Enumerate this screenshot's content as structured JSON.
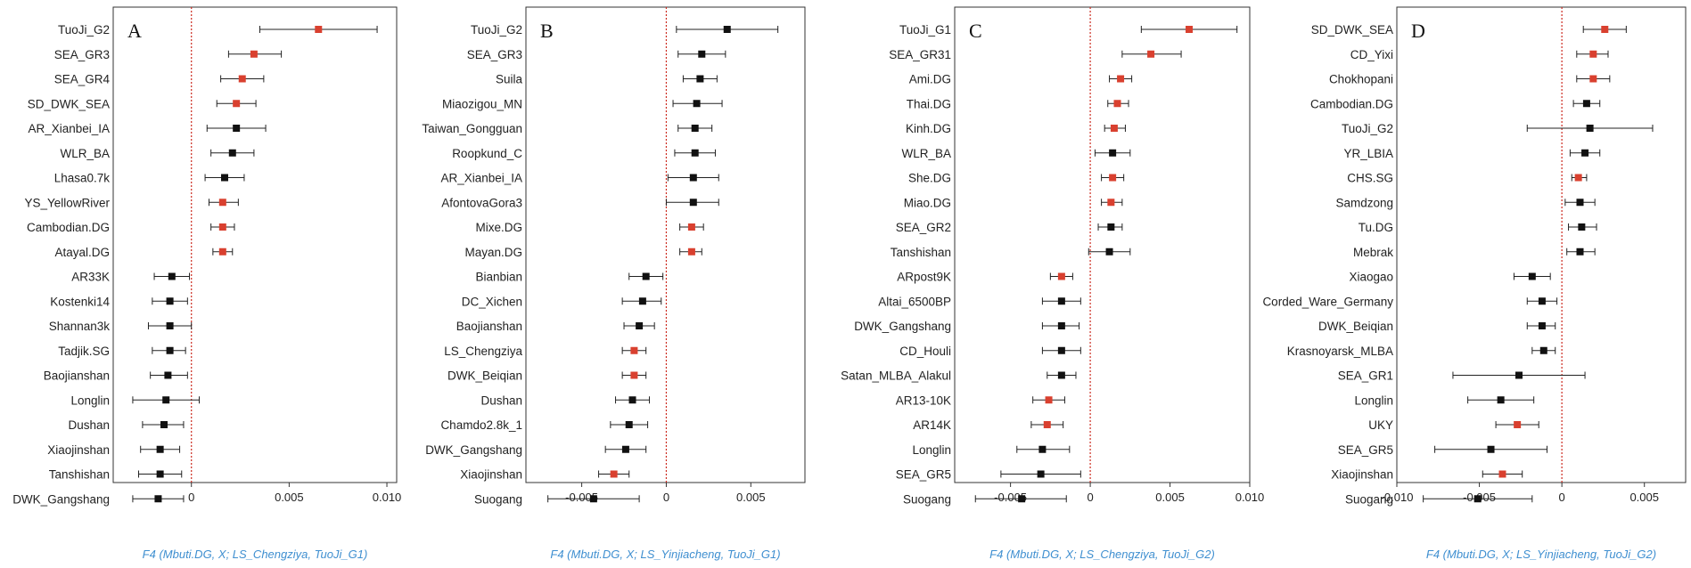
{
  "figure": {
    "zero_line_color": "#cc2a1f",
    "highlight_color": "#d9402f",
    "default_color": "#111111",
    "xlabel_color": "#3f8fd0"
  },
  "chart_data": [
    {
      "type": "scatter",
      "panel": "A",
      "xlabel": "F4 (Mbuti.DG, X; LS_Chengziya, TuoJi_G1)",
      "xlim": [
        -0.004,
        0.0105
      ],
      "xticks": [
        0,
        0.005,
        0.01
      ],
      "xtick_labels": [
        "0",
        "0.005",
        "0.010"
      ],
      "points": [
        {
          "label": "TuoJi_G2",
          "value": 0.0065,
          "lo": 0.0035,
          "hi": 0.0095,
          "highlight": true
        },
        {
          "label": "SEA_GR3",
          "value": 0.0032,
          "lo": 0.0019,
          "hi": 0.0046,
          "highlight": true
        },
        {
          "label": "SEA_GR4",
          "value": 0.0026,
          "lo": 0.0015,
          "hi": 0.0037,
          "highlight": true
        },
        {
          "label": "SD_DWK_SEA",
          "value": 0.0023,
          "lo": 0.0013,
          "hi": 0.0033,
          "highlight": true
        },
        {
          "label": "AR_Xianbei_IA",
          "value": 0.0023,
          "lo": 0.0008,
          "hi": 0.0038,
          "highlight": false
        },
        {
          "label": "WLR_BA",
          "value": 0.0021,
          "lo": 0.001,
          "hi": 0.0032,
          "highlight": false
        },
        {
          "label": "Lhasa0.7k",
          "value": 0.0017,
          "lo": 0.0007,
          "hi": 0.0027,
          "highlight": false
        },
        {
          "label": "YS_YellowRiver",
          "value": 0.0016,
          "lo": 0.0009,
          "hi": 0.0024,
          "highlight": true
        },
        {
          "label": "Cambodian.DG",
          "value": 0.0016,
          "lo": 0.001,
          "hi": 0.0022,
          "highlight": true
        },
        {
          "label": "Atayal.DG",
          "value": 0.0016,
          "lo": 0.0011,
          "hi": 0.0021,
          "highlight": true
        },
        {
          "label": "AR33K",
          "value": -0.001,
          "lo": -0.0019,
          "hi": -0.0001,
          "highlight": false
        },
        {
          "label": "Kostenki14",
          "value": -0.0011,
          "lo": -0.002,
          "hi": -0.0002,
          "highlight": false
        },
        {
          "label": "Shannan3k",
          "value": -0.0011,
          "lo": -0.0022,
          "hi": 0.0,
          "highlight": false
        },
        {
          "label": "Tadjik.SG",
          "value": -0.0011,
          "lo": -0.002,
          "hi": -0.0003,
          "highlight": false
        },
        {
          "label": "Baojianshan",
          "value": -0.0012,
          "lo": -0.0021,
          "hi": -0.0002,
          "highlight": false
        },
        {
          "label": "Longlin",
          "value": -0.0013,
          "lo": -0.003,
          "hi": 0.0004,
          "highlight": false
        },
        {
          "label": "Dushan",
          "value": -0.0014,
          "lo": -0.0025,
          "hi": -0.0004,
          "highlight": false
        },
        {
          "label": "Xiaojinshan",
          "value": -0.0016,
          "lo": -0.0026,
          "hi": -0.0006,
          "highlight": false
        },
        {
          "label": "Tanshishan",
          "value": -0.0016,
          "lo": -0.0027,
          "hi": -0.0005,
          "highlight": false
        },
        {
          "label": "DWK_Gangshang",
          "value": -0.0017,
          "lo": -0.003,
          "hi": -0.0004,
          "highlight": false
        }
      ]
    },
    {
      "type": "scatter",
      "panel": "B",
      "xlabel": "F4 (Mbuti.DG, X; LS_Yinjiacheng, TuoJi_G1)",
      "xlim": [
        -0.0083,
        0.0082
      ],
      "xticks": [
        -0.005,
        0,
        0.005
      ],
      "xtick_labels": [
        "-0.005",
        "0",
        "0.005"
      ],
      "points": [
        {
          "label": "TuoJi_G2",
          "value": 0.0036,
          "lo": 0.0006,
          "hi": 0.0066,
          "highlight": false
        },
        {
          "label": "SEA_GR3",
          "value": 0.0021,
          "lo": 0.0007,
          "hi": 0.0035,
          "highlight": false
        },
        {
          "label": "Suila",
          "value": 0.002,
          "lo": 0.001,
          "hi": 0.003,
          "highlight": false
        },
        {
          "label": "Miaozigou_MN",
          "value": 0.0018,
          "lo": 0.0004,
          "hi": 0.0033,
          "highlight": false
        },
        {
          "label": "Taiwan_Gongguan",
          "value": 0.0017,
          "lo": 0.0007,
          "hi": 0.0027,
          "highlight": false
        },
        {
          "label": "Roopkund_C",
          "value": 0.0017,
          "lo": 0.0005,
          "hi": 0.0029,
          "highlight": false
        },
        {
          "label": "AR_Xianbei_IA",
          "value": 0.0016,
          "lo": 0.0001,
          "hi": 0.0031,
          "highlight": false
        },
        {
          "label": "AfontovaGora3",
          "value": 0.0016,
          "lo": 0.0,
          "hi": 0.0031,
          "highlight": false
        },
        {
          "label": "Mixe.DG",
          "value": 0.0015,
          "lo": 0.0008,
          "hi": 0.0022,
          "highlight": true
        },
        {
          "label": "Mayan.DG",
          "value": 0.0015,
          "lo": 0.0008,
          "hi": 0.0021,
          "highlight": true
        },
        {
          "label": "Bianbian",
          "value": -0.0012,
          "lo": -0.0022,
          "hi": -0.0002,
          "highlight": false
        },
        {
          "label": "DC_Xichen",
          "value": -0.0014,
          "lo": -0.0026,
          "hi": -0.0003,
          "highlight": false
        },
        {
          "label": "Baojianshan",
          "value": -0.0016,
          "lo": -0.0025,
          "hi": -0.0007,
          "highlight": false
        },
        {
          "label": "LS_Chengziya",
          "value": -0.0019,
          "lo": -0.0026,
          "hi": -0.0012,
          "highlight": true
        },
        {
          "label": "DWK_Beiqian",
          "value": -0.0019,
          "lo": -0.0026,
          "hi": -0.0012,
          "highlight": true
        },
        {
          "label": "Dushan",
          "value": -0.002,
          "lo": -0.003,
          "hi": -0.001,
          "highlight": false
        },
        {
          "label": "Chamdo2.8k_1",
          "value": -0.0022,
          "lo": -0.0033,
          "hi": -0.0011,
          "highlight": false
        },
        {
          "label": "DWK_Gangshang",
          "value": -0.0024,
          "lo": -0.0036,
          "hi": -0.0012,
          "highlight": false
        },
        {
          "label": "Xiaojinshan",
          "value": -0.0031,
          "lo": -0.004,
          "hi": -0.0022,
          "highlight": true
        },
        {
          "label": "Suogang",
          "value": -0.0043,
          "lo": -0.007,
          "hi": -0.0016,
          "highlight": false
        }
      ]
    },
    {
      "type": "scatter",
      "panel": "C",
      "xlabel": "F4 (Mbuti.DG, X; LS_Chengziya, TuoJi_G2)",
      "xlim": [
        -0.0085,
        0.01
      ],
      "xticks": [
        -0.005,
        0,
        0.005,
        0.01
      ],
      "xtick_labels": [
        "-0.005",
        "0",
        "0.005",
        "0.010"
      ],
      "points": [
        {
          "label": "TuoJi_G1",
          "value": 0.0062,
          "lo": 0.0032,
          "hi": 0.0092,
          "highlight": true
        },
        {
          "label": "SEA_GR31",
          "value": 0.0038,
          "lo": 0.002,
          "hi": 0.0057,
          "highlight": true
        },
        {
          "label": "Ami.DG",
          "value": 0.0019,
          "lo": 0.0012,
          "hi": 0.0026,
          "highlight": true
        },
        {
          "label": "Thai.DG",
          "value": 0.0017,
          "lo": 0.0011,
          "hi": 0.0024,
          "highlight": true
        },
        {
          "label": "Kinh.DG",
          "value": 0.0015,
          "lo": 0.0009,
          "hi": 0.0022,
          "highlight": true
        },
        {
          "label": "WLR_BA",
          "value": 0.0014,
          "lo": 0.0003,
          "hi": 0.0025,
          "highlight": false
        },
        {
          "label": "She.DG",
          "value": 0.0014,
          "lo": 0.0007,
          "hi": 0.0021,
          "highlight": true
        },
        {
          "label": "Miao.DG",
          "value": 0.0013,
          "lo": 0.0007,
          "hi": 0.002,
          "highlight": true
        },
        {
          "label": "SEA_GR2",
          "value": 0.0013,
          "lo": 0.0005,
          "hi": 0.002,
          "highlight": false
        },
        {
          "label": "Tanshishan",
          "value": 0.0012,
          "lo": -0.0001,
          "hi": 0.0025,
          "highlight": false
        },
        {
          "label": "ARpost9K",
          "value": -0.0018,
          "lo": -0.0025,
          "hi": -0.0011,
          "highlight": true
        },
        {
          "label": "Altai_6500BP",
          "value": -0.0018,
          "lo": -0.003,
          "hi": -0.0006,
          "highlight": false
        },
        {
          "label": "DWK_Gangshang",
          "value": -0.0018,
          "lo": -0.003,
          "hi": -0.0007,
          "highlight": false
        },
        {
          "label": "CD_Houli",
          "value": -0.0018,
          "lo": -0.003,
          "hi": -0.0006,
          "highlight": false
        },
        {
          "label": "Satan_MLBA_Alakul",
          "value": -0.0018,
          "lo": -0.0027,
          "hi": -0.0009,
          "highlight": false
        },
        {
          "label": "AR13-10K",
          "value": -0.0026,
          "lo": -0.0036,
          "hi": -0.0016,
          "highlight": true
        },
        {
          "label": "AR14K",
          "value": -0.0027,
          "lo": -0.0037,
          "hi": -0.0017,
          "highlight": true
        },
        {
          "label": "Longlin",
          "value": -0.003,
          "lo": -0.0046,
          "hi": -0.0013,
          "highlight": false
        },
        {
          "label": "SEA_GR5",
          "value": -0.0031,
          "lo": -0.0056,
          "hi": -0.0006,
          "highlight": false
        },
        {
          "label": "Suogang",
          "value": -0.0043,
          "lo": -0.0072,
          "hi": -0.0015,
          "highlight": false
        }
      ]
    },
    {
      "type": "scatter",
      "panel": "D",
      "xlabel": "F4 (Mbuti.DG, X; LS_Yinjiacheng, TuoJi_G2)",
      "xlim": [
        -0.01,
        0.0075
      ],
      "xticks": [
        -0.01,
        -0.005,
        0,
        0.005
      ],
      "xtick_labels": [
        "-0.010",
        "-0.005",
        "0",
        "0.005"
      ],
      "points": [
        {
          "label": "SD_DWK_SEA",
          "value": 0.0026,
          "lo": 0.0013,
          "hi": 0.0039,
          "highlight": true
        },
        {
          "label": "CD_Yixi",
          "value": 0.0019,
          "lo": 0.0009,
          "hi": 0.0028,
          "highlight": true
        },
        {
          "label": "Chokhopani",
          "value": 0.0019,
          "lo": 0.0009,
          "hi": 0.0029,
          "highlight": true
        },
        {
          "label": "Cambodian.DG",
          "value": 0.0015,
          "lo": 0.0007,
          "hi": 0.0023,
          "highlight": false
        },
        {
          "label": "TuoJi_G2",
          "value": 0.0017,
          "lo": -0.0021,
          "hi": 0.0055,
          "highlight": false
        },
        {
          "label": "YR_LBIA",
          "value": 0.0014,
          "lo": 0.0005,
          "hi": 0.0023,
          "highlight": false
        },
        {
          "label": "CHS.SG",
          "value": 0.001,
          "lo": 0.0006,
          "hi": 0.0015,
          "highlight": true
        },
        {
          "label": "Samdzong",
          "value": 0.0011,
          "lo": 0.0002,
          "hi": 0.002,
          "highlight": false
        },
        {
          "label": "Tu.DG",
          "value": 0.0012,
          "lo": 0.0004,
          "hi": 0.0021,
          "highlight": false
        },
        {
          "label": "Mebrak",
          "value": 0.0011,
          "lo": 0.0003,
          "hi": 0.002,
          "highlight": false
        },
        {
          "label": "Xiaogao",
          "value": -0.0018,
          "lo": -0.0029,
          "hi": -0.0007,
          "highlight": false
        },
        {
          "label": "Corded_Ware_Germany",
          "value": -0.0012,
          "lo": -0.0021,
          "hi": -0.0003,
          "highlight": false
        },
        {
          "label": "DWK_Beiqian",
          "value": -0.0012,
          "lo": -0.0021,
          "hi": -0.0004,
          "highlight": false
        },
        {
          "label": "Krasnoyarsk_MLBA",
          "value": -0.0011,
          "lo": -0.0018,
          "hi": -0.0004,
          "highlight": false
        },
        {
          "label": "SEA_GR1",
          "value": -0.0026,
          "lo": -0.0066,
          "hi": 0.0014,
          "highlight": false
        },
        {
          "label": "Longlin",
          "value": -0.0037,
          "lo": -0.0057,
          "hi": -0.0017,
          "highlight": false
        },
        {
          "label": "UKY",
          "value": -0.0027,
          "lo": -0.004,
          "hi": -0.0014,
          "highlight": true
        },
        {
          "label": "SEA_GR5",
          "value": -0.0043,
          "lo": -0.0077,
          "hi": -0.0009,
          "highlight": false
        },
        {
          "label": "Xiaojinshan",
          "value": -0.0036,
          "lo": -0.0048,
          "hi": -0.0024,
          "highlight": true
        },
        {
          "label": "Suogang",
          "value": -0.0051,
          "lo": -0.0084,
          "hi": -0.0018,
          "highlight": false
        }
      ]
    }
  ]
}
